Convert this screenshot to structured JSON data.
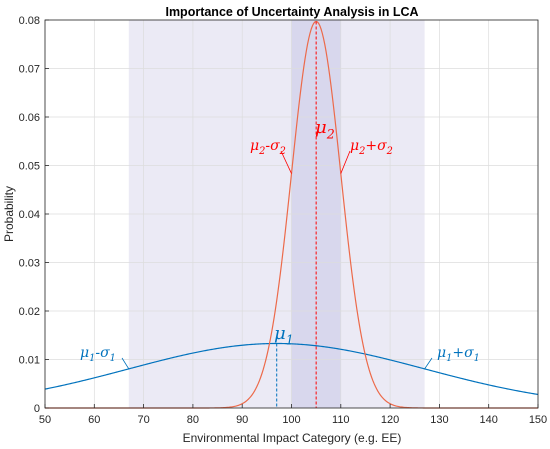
{
  "chart_data": {
    "type": "line",
    "title": "Importance of Uncertainty Analysis in LCA",
    "xlabel": "Environmental Impact Category (e.g. EE)",
    "ylabel": "Probability",
    "xlim": [
      50,
      150
    ],
    "ylim": [
      0,
      0.08
    ],
    "xticks": [
      "50",
      "60",
      "70",
      "80",
      "90",
      "100",
      "110",
      "120",
      "130",
      "140",
      "150"
    ],
    "yticks": [
      "0",
      "0.01",
      "0.02",
      "0.03",
      "0.04",
      "0.05",
      "0.06",
      "0.07",
      "0.08"
    ],
    "grid": true,
    "series": [
      {
        "color": "#0072BD",
        "mu": 97,
        "sigma": 30,
        "peak": 0.0133
      },
      {
        "color": "#EC6A4A",
        "mu": 105,
        "sigma": 5,
        "peak": 0.0797
      }
    ],
    "shaded_regions": [
      {
        "x": [
          67,
          127
        ],
        "color": "#e4e3f2"
      },
      {
        "x": [
          100,
          110
        ],
        "color": "#d2d0ea"
      }
    ],
    "annotations": {
      "mu1": {
        "text": "μ",
        "sub": "1",
        "color": "#0072BD",
        "x": 97,
        "y": 0.0133
      },
      "mu2": {
        "text": "μ",
        "sub": "2",
        "color": "#FF0000",
        "x": 105,
        "y": 0.0797
      },
      "mu1_minus": {
        "text": "μ",
        "sub": "1",
        "op": "-σ",
        "sub2": "1",
        "color": "#0072BD"
      },
      "mu1_plus": {
        "text": "μ",
        "sub": "1",
        "op": "+σ",
        "sub2": "1",
        "color": "#0072BD"
      },
      "mu2_minus": {
        "text": "μ",
        "sub": "2",
        "op": "-σ",
        "sub2": "2",
        "color": "#FF0000"
      },
      "mu2_plus": {
        "text": "μ",
        "sub": "2",
        "op": "+σ",
        "sub2": "2",
        "color": "#FF0000"
      }
    }
  }
}
